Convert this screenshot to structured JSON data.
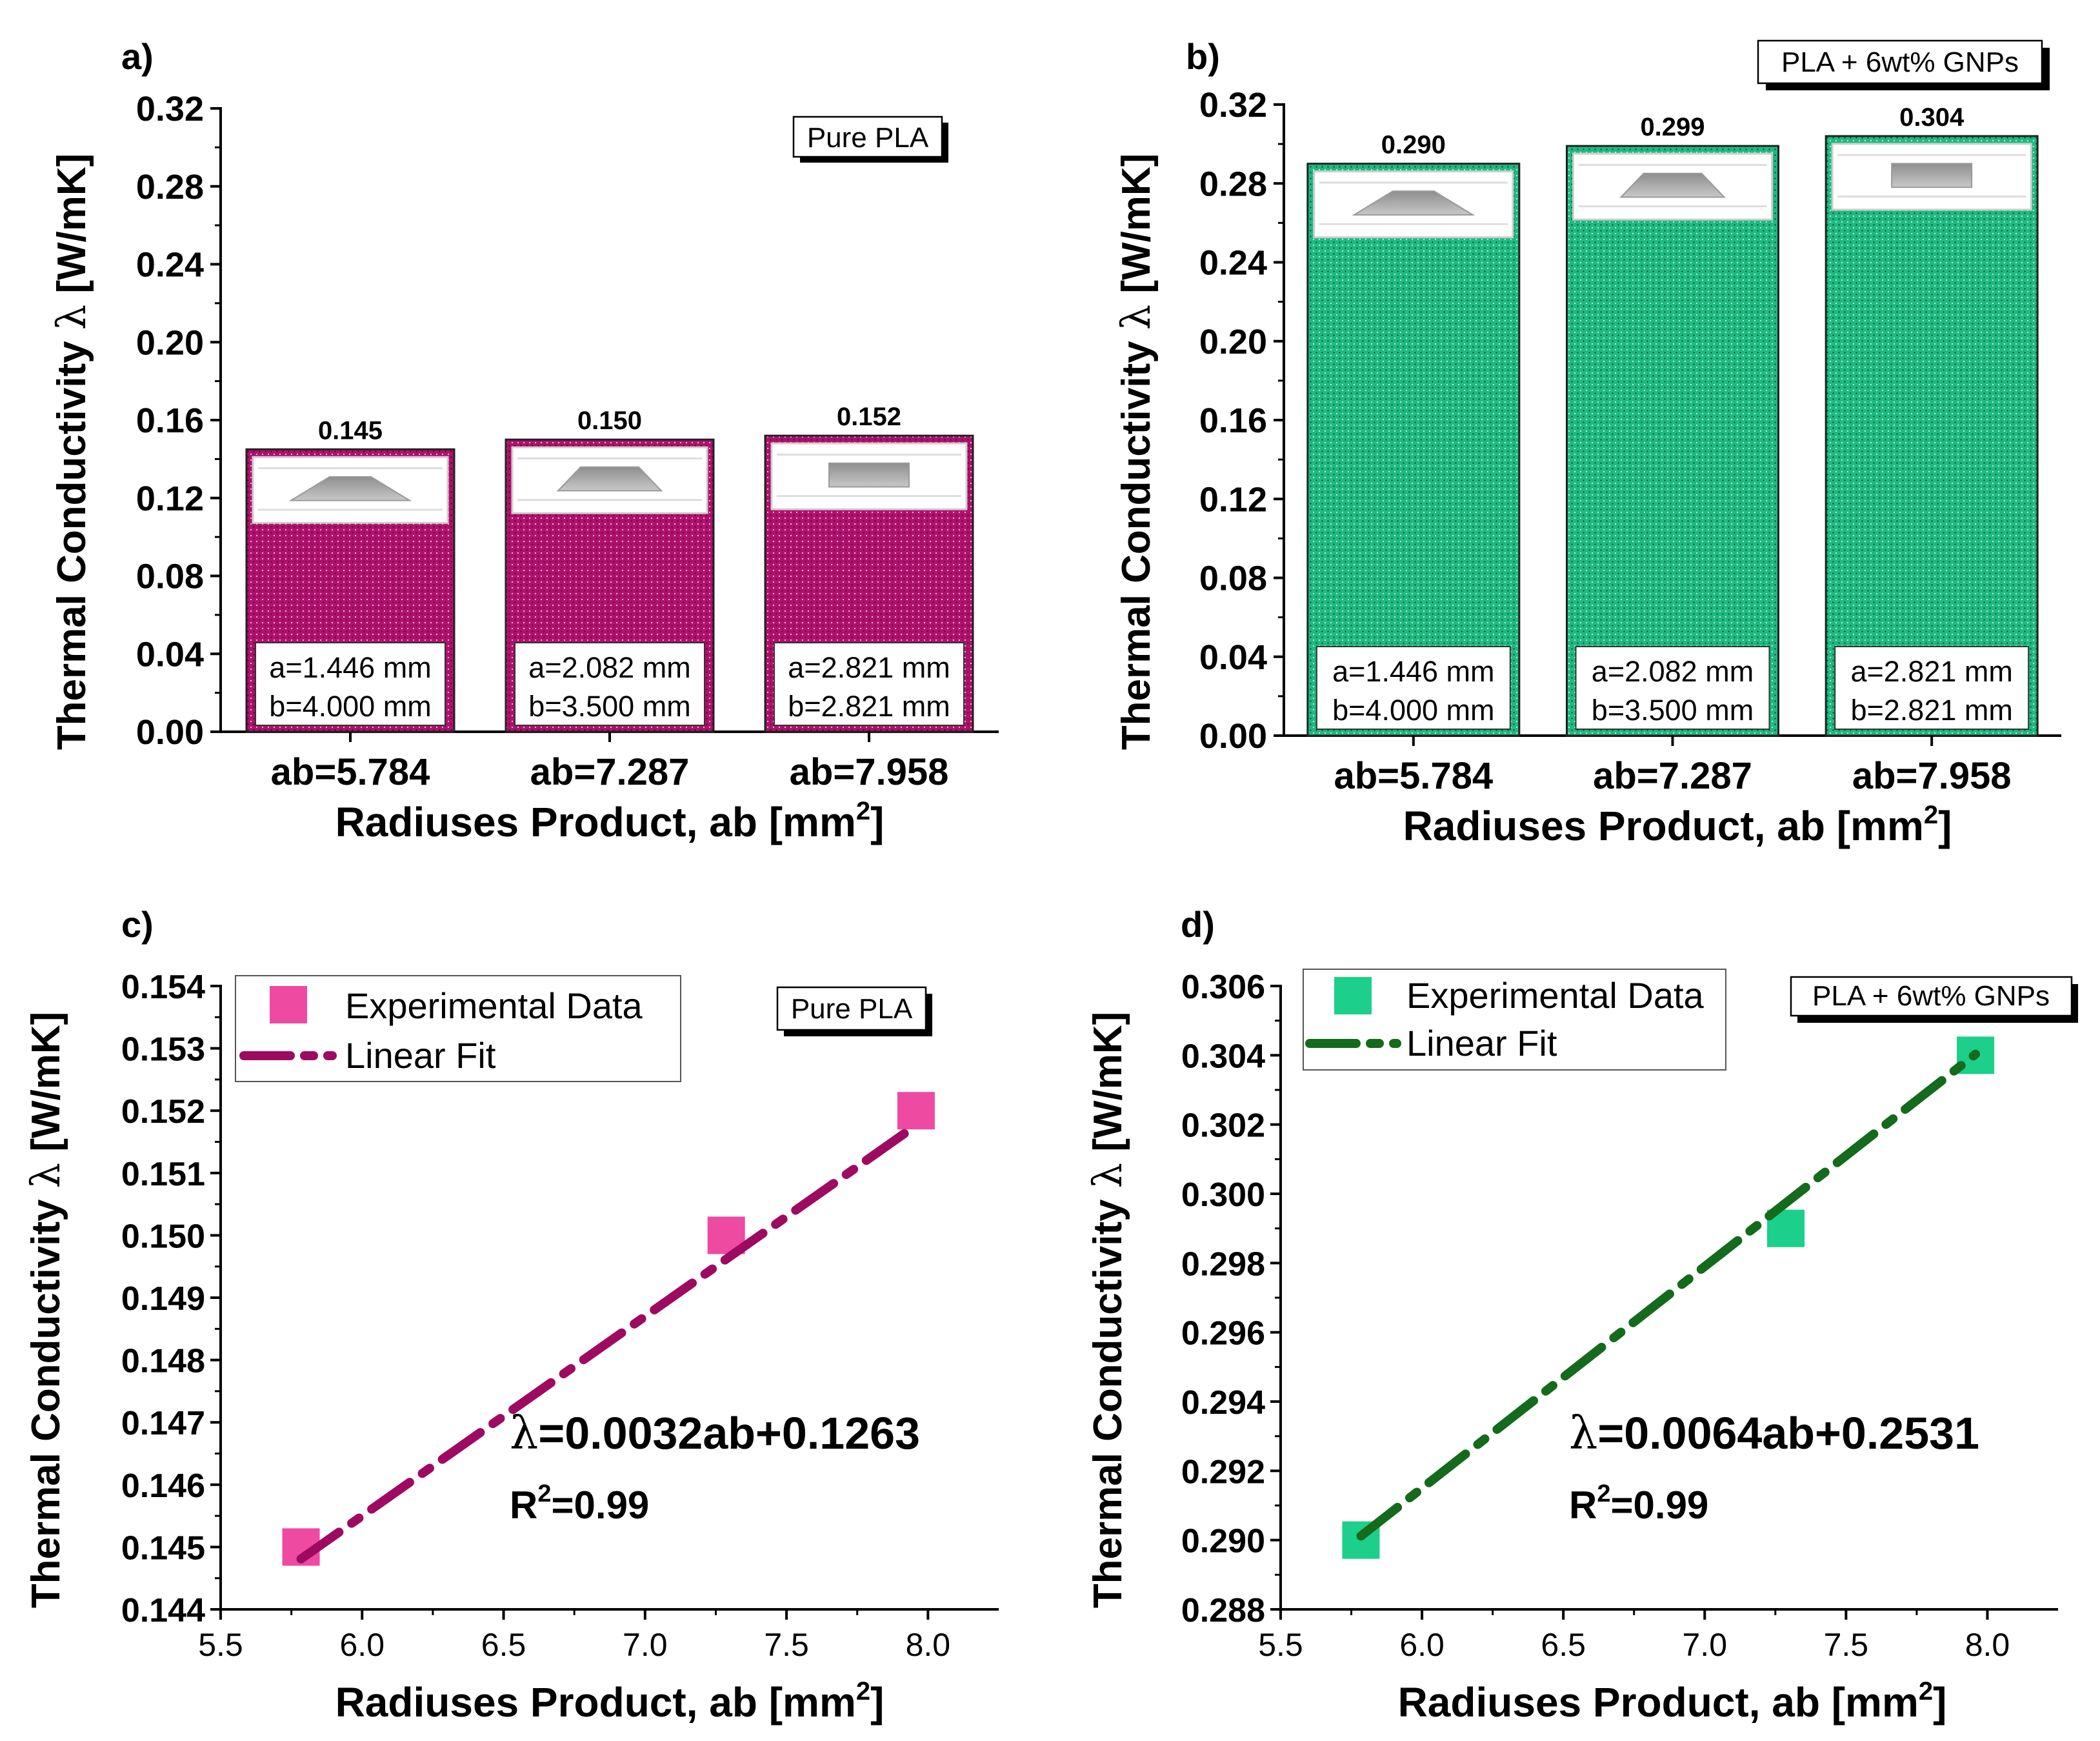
{
  "colors": {
    "pure_pla_fill": "#b0106e",
    "pure_pla_marker": "#ee4aa2",
    "pure_pla_fit": "#9e0a62",
    "gnp_fill": "#1fb982",
    "gnp_marker": "#1ccf8a",
    "gnp_fit": "#136b1b"
  },
  "chart_data": [
    {
      "panel": "a)",
      "type": "bar",
      "legend": "Pure PLA",
      "categories": [
        "ab=5.784",
        "ab=7.287",
        "ab=7.958"
      ],
      "values": [
        0.145,
        0.15,
        0.152
      ],
      "value_labels": [
        "0.145",
        "0.150",
        "0.152"
      ],
      "insets": [
        {
          "line1": "a=1.446 mm",
          "line2": "b=4.000 mm"
        },
        {
          "line1": "a=2.082 mm",
          "line2": "b=3.500 mm"
        },
        {
          "line1": "a=2.821 mm",
          "line2": "b=2.821 mm"
        }
      ],
      "shapes": [
        "wide-trapezoid",
        "trapezoid",
        "rectangle"
      ],
      "ylabel_prefix": "Thermal Conductivity ",
      "ylabel_symbol": "λ",
      "ylabel_suffix": " [W/mK]",
      "xlabel_main": "Radiuses Product, ab [mm",
      "xlabel_sup": "2",
      "xlabel_end": "]",
      "ylim": [
        0,
        0.32
      ],
      "yticks": [
        "0.00",
        "0.04",
        "0.08",
        "0.12",
        "0.16",
        "0.20",
        "0.24",
        "0.28",
        "0.32"
      ]
    },
    {
      "panel": "b)",
      "type": "bar",
      "legend": "PLA + 6wt% GNPs",
      "categories": [
        "ab=5.784",
        "ab=7.287",
        "ab=7.958"
      ],
      "values": [
        0.29,
        0.299,
        0.304
      ],
      "value_labels": [
        "0.290",
        "0.299",
        "0.304"
      ],
      "insets": [
        {
          "line1": "a=1.446 mm",
          "line2": "b=4.000 mm"
        },
        {
          "line1": "a=2.082 mm",
          "line2": "b=3.500 mm"
        },
        {
          "line1": "a=2.821 mm",
          "line2": "b=2.821 mm"
        }
      ],
      "shapes": [
        "wide-trapezoid",
        "trapezoid",
        "rectangle"
      ],
      "ylabel_prefix": "Thermal Conductivity ",
      "ylabel_symbol": "λ",
      "ylabel_suffix": " [W/mK]",
      "xlabel_main": "Radiuses Product, ab [mm",
      "xlabel_sup": "2",
      "xlabel_end": "]",
      "ylim": [
        0,
        0.32
      ],
      "yticks": [
        "0.00",
        "0.04",
        "0.08",
        "0.12",
        "0.16",
        "0.20",
        "0.24",
        "0.28",
        "0.32"
      ]
    },
    {
      "panel": "c)",
      "type": "scatter",
      "legend_box": "Pure PLA",
      "series": [
        {
          "name": "Experimental Data",
          "x": [
            5.784,
            7.287,
            7.958
          ],
          "y": [
            0.145,
            0.15,
            0.152
          ]
        },
        {
          "name": "Linear Fit",
          "slope": 0.0032,
          "intercept": 0.1263
        }
      ],
      "equation_symbol": "λ",
      "equation_rest": "=0.0032ab+0.1263",
      "r2_main": "R",
      "r2_sup": "2",
      "r2_rest": "=0.99",
      "ylabel_prefix": "Thermal Conductivity ",
      "ylabel_symbol": "λ",
      "ylabel_suffix": " [W/mK]",
      "xlabel_main": "Radiuses Product, ab [mm",
      "xlabel_sup": "2",
      "xlabel_end": "]",
      "xlim": [
        5.5,
        8.25
      ],
      "ylim": [
        0.144,
        0.154
      ],
      "xticks": [
        "5.5",
        "6.0",
        "6.5",
        "7.0",
        "7.5",
        "8.0"
      ],
      "yticks": [
        "0.144",
        "0.145",
        "0.146",
        "0.147",
        "0.148",
        "0.149",
        "0.150",
        "0.151",
        "0.152",
        "0.153",
        "0.154"
      ]
    },
    {
      "panel": "d)",
      "type": "scatter",
      "legend_box": "PLA + 6wt% GNPs",
      "series": [
        {
          "name": "Experimental Data",
          "x": [
            5.784,
            7.287,
            7.958
          ],
          "y": [
            0.29,
            0.299,
            0.304
          ]
        },
        {
          "name": "Linear Fit",
          "slope": 0.0064,
          "intercept": 0.2531
        }
      ],
      "equation_symbol": "λ",
      "equation_rest": "=0.0064ab+0.2531",
      "r2_main": "R",
      "r2_sup": "2",
      "r2_rest": "=0.99",
      "ylabel_prefix": "Thermal Conductivity ",
      "ylabel_symbol": "λ",
      "ylabel_suffix": " [W/mK]",
      "xlabel_main": "Radiuses Product, ab [mm",
      "xlabel_sup": "2",
      "xlabel_end": "]",
      "xlim": [
        5.5,
        8.25
      ],
      "ylim": [
        0.288,
        0.306
      ],
      "xticks": [
        "5.5",
        "6.0",
        "6.5",
        "7.0",
        "7.5",
        "8.0"
      ],
      "yticks": [
        "0.288",
        "0.290",
        "0.292",
        "0.294",
        "0.296",
        "0.298",
        "0.300",
        "0.302",
        "0.304",
        "0.306"
      ]
    }
  ]
}
